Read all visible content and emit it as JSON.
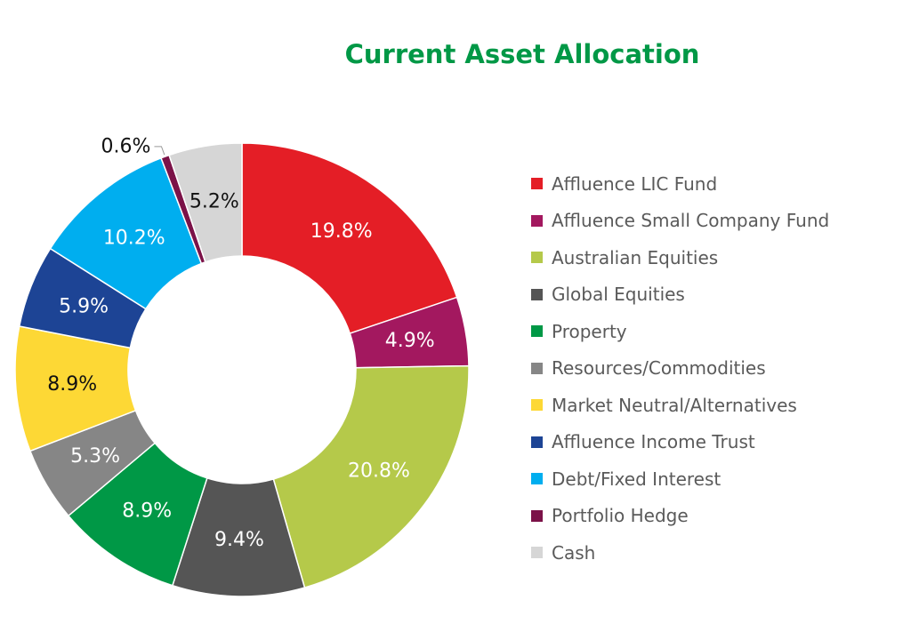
{
  "chart_data": {
    "type": "pie",
    "title": "Current Asset Allocation",
    "categories": [
      "Affluence LIC Fund",
      "Affluence Small Company Fund",
      "Australian Equities",
      "Global Equities",
      "Property",
      "Resources/Commodities",
      "Market Neutral/Alternatives",
      "Affluence Income Trust",
      "Debt/Fixed Interest",
      "Portfolio Hedge",
      "Cash"
    ],
    "values": [
      19.8,
      4.9,
      20.8,
      9.4,
      8.9,
      5.3,
      8.9,
      5.9,
      10.2,
      0.6,
      5.2
    ],
    "value_labels": [
      "19.8%",
      "4.9%",
      "20.8%",
      "9.4%",
      "8.9%",
      "5.3%",
      "8.9%",
      "5.9%",
      "10.2%",
      "0.6%",
      "5.2%"
    ],
    "colors": [
      "#e41e26",
      "#a3185f",
      "#b5c94a",
      "#555555",
      "#009846",
      "#868686",
      "#fdd835",
      "#1d4495",
      "#00aeef",
      "#7b1248",
      "#d6d6d6"
    ],
    "label_colors": [
      "#ffffff",
      "#ffffff",
      "#ffffff",
      "#ffffff",
      "#ffffff",
      "#ffffff",
      "#111111",
      "#ffffff",
      "#ffffff",
      "#111111",
      "#111111"
    ],
    "donut": true,
    "legend_position": "right"
  }
}
